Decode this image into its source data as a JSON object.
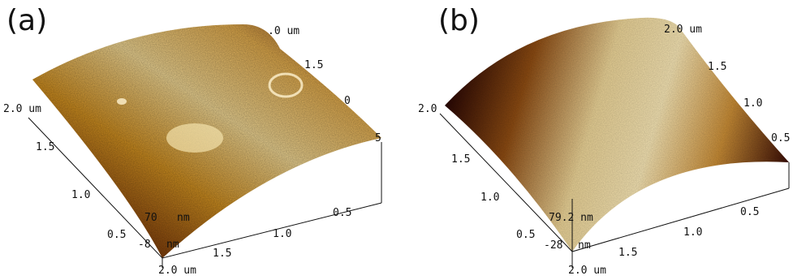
{
  "panels": [
    {
      "label": "(a)",
      "x_axis_ticks": [
        "2.0 um",
        "1.5",
        "1.0",
        "0.5"
      ],
      "left_axis_ticks": [
        "2.0 um",
        "1.5",
        "1.0",
        "0.5"
      ],
      "back_axis_ticks": [
        ".0 um",
        "1.5",
        "0",
        "5"
      ],
      "z_axis_labels": [
        "nm",
        "nm"
      ],
      "z_axis_values": [
        "-8",
        "70"
      ]
    },
    {
      "label": "(b)",
      "x_axis_ticks": [
        "2.0 um",
        "1.5",
        "1.0",
        "0.5"
      ],
      "left_axis_ticks": [
        "2.0",
        "1.5",
        "1.0",
        "0.5"
      ],
      "back_axis_ticks": [
        "2.0 um",
        "1.5",
        "1.0",
        "0.5"
      ],
      "z_axis_labels": [
        "79.2 nm",
        "nm"
      ],
      "z_axis_values": [
        "-28"
      ]
    }
  ],
  "colors": {
    "dark": "#3a0d05",
    "mid": "#a8620f",
    "light": "#e9c97a",
    "highlight": "#f5e6b4"
  }
}
